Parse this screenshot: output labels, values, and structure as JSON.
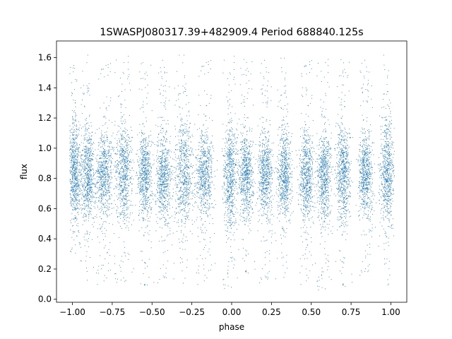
{
  "chart_data": {
    "type": "scatter",
    "title": "1SWASPJ080317.39+482909.4 Period 688840.125s",
    "xlabel": "phase",
    "ylabel": "flux",
    "xlim": [
      -1.1,
      1.1
    ],
    "ylim": [
      -0.02,
      1.71
    ],
    "x_ticks": [
      -1.0,
      -0.75,
      -0.5,
      -0.25,
      0.0,
      0.25,
      0.5,
      0.75,
      1.0
    ],
    "x_tick_labels": [
      "−1.00",
      "−0.75",
      "−0.50",
      "−0.25",
      "0.00",
      "0.25",
      "0.50",
      "0.75",
      "1.00"
    ],
    "y_ticks": [
      0.0,
      0.2,
      0.4,
      0.6,
      0.8,
      1.0,
      1.2,
      1.4,
      1.6
    ],
    "y_tick_labels": [
      "0.0",
      "0.2",
      "0.4",
      "0.6",
      "0.8",
      "1.0",
      "1.2",
      "1.4",
      "1.6"
    ],
    "grid": false,
    "marker_color": "#1f77b4",
    "series": [
      {
        "clusters": [
          {
            "x_center": -0.99,
            "x_width": 0.04,
            "y_core": [
              0.6,
              1.1
            ],
            "y_range": [
              0.3,
              1.55
            ]
          },
          {
            "x_center": -0.905,
            "x_width": 0.05,
            "y_core": [
              0.58,
              1.05
            ],
            "y_range": [
              0.08,
              1.62
            ]
          },
          {
            "x_center": -0.8,
            "x_width": 0.06,
            "y_core": [
              0.6,
              1.05
            ],
            "y_range": [
              0.1,
              1.58
            ]
          },
          {
            "x_center": -0.68,
            "x_width": 0.06,
            "y_core": [
              0.6,
              1.1
            ],
            "y_range": [
              0.1,
              1.62
            ]
          },
          {
            "x_center": -0.545,
            "x_width": 0.05,
            "y_core": [
              0.6,
              1.05
            ],
            "y_range": [
              0.06,
              1.6
            ]
          },
          {
            "x_center": -0.43,
            "x_width": 0.05,
            "y_core": [
              0.58,
              1.05
            ],
            "y_range": [
              0.1,
              1.6
            ]
          },
          {
            "x_center": -0.3,
            "x_width": 0.07,
            "y_core": [
              0.55,
              1.1
            ],
            "y_range": [
              0.06,
              1.62
            ]
          },
          {
            "x_center": -0.17,
            "x_width": 0.06,
            "y_core": [
              0.6,
              1.05
            ],
            "y_range": [
              0.1,
              1.6
            ]
          },
          {
            "x_center": -0.01,
            "x_width": 0.05,
            "y_core": [
              0.55,
              1.1
            ],
            "y_range": [
              0.06,
              1.62
            ]
          },
          {
            "x_center": 0.09,
            "x_width": 0.05,
            "y_core": [
              0.6,
              1.05
            ],
            "y_range": [
              0.15,
              1.62
            ]
          },
          {
            "x_center": 0.21,
            "x_width": 0.05,
            "y_core": [
              0.6,
              1.05
            ],
            "y_range": [
              0.1,
              1.6
            ]
          },
          {
            "x_center": 0.33,
            "x_width": 0.05,
            "y_core": [
              0.6,
              1.05
            ],
            "y_range": [
              0.1,
              1.6
            ]
          },
          {
            "x_center": 0.47,
            "x_width": 0.05,
            "y_core": [
              0.58,
              1.05
            ],
            "y_range": [
              0.1,
              1.6
            ]
          },
          {
            "x_center": 0.58,
            "x_width": 0.05,
            "y_core": [
              0.6,
              1.05
            ],
            "y_range": [
              0.05,
              1.6
            ]
          },
          {
            "x_center": 0.7,
            "x_width": 0.05,
            "y_core": [
              0.58,
              1.1
            ],
            "y_range": [
              0.06,
              1.62
            ]
          },
          {
            "x_center": 0.84,
            "x_width": 0.05,
            "y_core": [
              0.6,
              1.05
            ],
            "y_range": [
              0.15,
              1.6
            ]
          },
          {
            "x_center": 0.975,
            "x_width": 0.05,
            "y_core": [
              0.58,
              1.1
            ],
            "y_range": [
              0.05,
              1.62
            ]
          }
        ]
      }
    ]
  }
}
